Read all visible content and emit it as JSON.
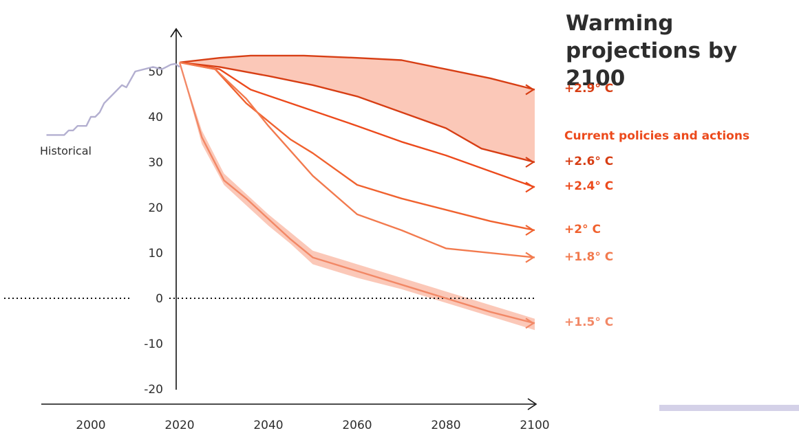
{
  "chart_data": {
    "type": "line",
    "title": "Warming projections by 2100",
    "xlim": [
      1990,
      2100
    ],
    "ylim": [
      -20,
      55
    ],
    "x_ticks": [
      2000,
      2020,
      2040,
      2060,
      2080,
      2100
    ],
    "y_ticks": [
      50,
      40,
      30,
      20,
      10,
      0,
      -10,
      -20
    ],
    "reference_line_y": 0,
    "historical": {
      "name": "Historical",
      "color": "#b3afd0",
      "points": [
        [
          1990,
          36
        ],
        [
          1994,
          36
        ],
        [
          1995,
          37
        ],
        [
          1996,
          37
        ],
        [
          1997,
          38
        ],
        [
          1999,
          38
        ],
        [
          2000,
          40
        ],
        [
          2001,
          40
        ],
        [
          2002,
          41
        ],
        [
          2003,
          43
        ],
        [
          2005,
          45
        ],
        [
          2007,
          47
        ],
        [
          2008,
          46.5
        ],
        [
          2010,
          50
        ],
        [
          2014,
          51
        ],
        [
          2016,
          50.5
        ],
        [
          2017,
          51
        ],
        [
          2018,
          51.5
        ],
        [
          2019,
          51.7
        ],
        [
          2020,
          51
        ]
      ]
    },
    "band": {
      "name": "Current policies and actions",
      "color": "#fbc8b8",
      "upper": [
        [
          2020,
          52
        ],
        [
          2029,
          53
        ],
        [
          2036,
          53.5
        ],
        [
          2048,
          53.5
        ],
        [
          2060,
          53
        ],
        [
          2070,
          52.5
        ],
        [
          2080,
          50.5
        ],
        [
          2090,
          48.5
        ],
        [
          2100,
          46
        ]
      ],
      "lower": [
        [
          2100,
          30
        ],
        [
          2088,
          33
        ],
        [
          2080,
          37.5
        ],
        [
          2070,
          41
        ],
        [
          2060,
          44.5
        ],
        [
          2050,
          47
        ],
        [
          2040,
          49
        ],
        [
          2029,
          51
        ],
        [
          2020,
          52
        ]
      ]
    },
    "band_1_5": {
      "color": "#fbc8b8",
      "upper": [
        [
          2020,
          52
        ],
        [
          2025,
          37
        ],
        [
          2030,
          27.5
        ],
        [
          2035,
          23
        ],
        [
          2040,
          18.5
        ],
        [
          2045,
          14.5
        ],
        [
          2050,
          10.5
        ],
        [
          2060,
          7.5
        ],
        [
          2070,
          4.5
        ],
        [
          2080,
          1.5
        ],
        [
          2090,
          -1.5
        ],
        [
          2100,
          -4.5
        ]
      ],
      "lower": [
        [
          2100,
          -7
        ],
        [
          2090,
          -4
        ],
        [
          2080,
          -1
        ],
        [
          2070,
          2
        ],
        [
          2060,
          4.5
        ],
        [
          2050,
          7.5
        ],
        [
          2045,
          12
        ],
        [
          2040,
          16
        ],
        [
          2035,
          20.5
        ],
        [
          2030,
          25
        ],
        [
          2025,
          34
        ],
        [
          2020,
          52
        ]
      ]
    },
    "series": [
      {
        "name": "+2.9° C",
        "color": "#d73e14",
        "values": [
          [
            2020,
            52
          ],
          [
            2029,
            53
          ],
          [
            2036,
            53.5
          ],
          [
            2048,
            53.5
          ],
          [
            2060,
            53
          ],
          [
            2070,
            52.5
          ],
          [
            2080,
            50.5
          ],
          [
            2090,
            48.5
          ],
          [
            2100,
            46
          ]
        ]
      },
      {
        "name": "+2.6° C",
        "color": "#d73e14",
        "values": [
          [
            2020,
            52
          ],
          [
            2029,
            51
          ],
          [
            2040,
            49
          ],
          [
            2050,
            47
          ],
          [
            2060,
            44.5
          ],
          [
            2070,
            41
          ],
          [
            2080,
            37.5
          ],
          [
            2088,
            33
          ],
          [
            2100,
            30
          ]
        ]
      },
      {
        "name": "+2.4° C",
        "color": "#ec4a1c",
        "values": [
          [
            2020,
            52
          ],
          [
            2029,
            50.5
          ],
          [
            2036,
            46
          ],
          [
            2048,
            42
          ],
          [
            2060,
            38
          ],
          [
            2070,
            34.5
          ],
          [
            2080,
            31.5
          ],
          [
            2090,
            28
          ],
          [
            2100,
            24.5
          ]
        ]
      },
      {
        "name": "+2° C",
        "color": "#f0622f",
        "values": [
          [
            2020,
            52
          ],
          [
            2028,
            50.5
          ],
          [
            2035,
            43
          ],
          [
            2040,
            39
          ],
          [
            2045,
            35
          ],
          [
            2050,
            32
          ],
          [
            2060,
            25
          ],
          [
            2070,
            22
          ],
          [
            2080,
            19.5
          ],
          [
            2090,
            17
          ],
          [
            2100,
            15
          ]
        ]
      },
      {
        "name": "+1.8° C",
        "color": "#f27a4e",
        "values": [
          [
            2020,
            52
          ],
          [
            2028,
            50.5
          ],
          [
            2035,
            44
          ],
          [
            2040,
            38
          ],
          [
            2050,
            27
          ],
          [
            2060,
            18.5
          ],
          [
            2070,
            15
          ],
          [
            2080,
            11
          ],
          [
            2100,
            9
          ]
        ]
      },
      {
        "name": "+1.5° C",
        "color": "#f28866",
        "values": [
          [
            2020,
            52
          ],
          [
            2025,
            35.5
          ],
          [
            2030,
            26
          ],
          [
            2035,
            22
          ],
          [
            2040,
            17.5
          ],
          [
            2045,
            13
          ],
          [
            2050,
            9
          ],
          [
            2060,
            6
          ],
          [
            2070,
            3
          ],
          [
            2080,
            0
          ],
          [
            2090,
            -3
          ],
          [
            2100,
            -5.5
          ]
        ]
      }
    ],
    "annotations": {
      "historical_label": "Historical",
      "group_label": "Current policies and actions"
    }
  }
}
